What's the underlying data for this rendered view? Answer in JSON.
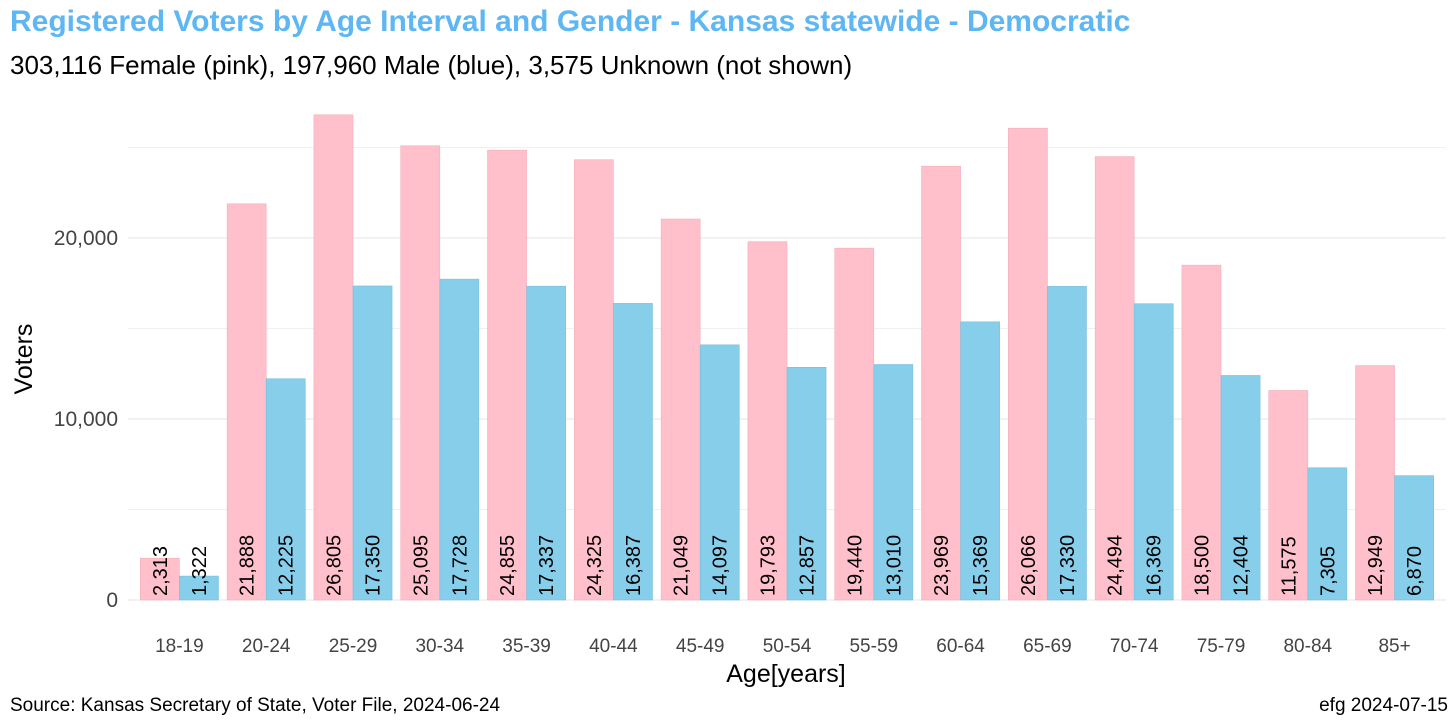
{
  "chart_data": {
    "type": "bar",
    "title": "Registered Voters by Age Interval and Gender - Kansas statewide - Democratic",
    "subtitle": "303,116 Female (pink),  197,960 Male (blue),  3,575 Unknown (not shown)",
    "xlabel": "Age[years]",
    "ylabel": "Voters",
    "ylim": [
      0,
      27000
    ],
    "yticks": [
      {
        "value": 0,
        "label": "0"
      },
      {
        "value": 10000,
        "label": "10,000"
      },
      {
        "value": 20000,
        "label": "20,000"
      }
    ],
    "grid": true,
    "categories": [
      "18-19",
      "20-24",
      "25-29",
      "30-34",
      "35-39",
      "40-44",
      "45-49",
      "50-54",
      "55-59",
      "60-64",
      "65-69",
      "70-74",
      "75-79",
      "80-84",
      "85+"
    ],
    "series": [
      {
        "color": "#FFC0CB",
        "values": [
          2313,
          21888,
          26805,
          25095,
          24855,
          24325,
          21049,
          19793,
          19440,
          23969,
          26066,
          24494,
          18500,
          11575,
          12949
        ],
        "labels": [
          "2,313",
          "21,888",
          "26,805",
          "25,095",
          "24,855",
          "24,325",
          "21,049",
          "19,793",
          "19,440",
          "23,969",
          "26,066",
          "24,494",
          "18,500",
          "11,575",
          "12,949"
        ]
      },
      {
        "color": "#87CEEB",
        "values": [
          1322,
          12225,
          17350,
          17728,
          17337,
          16387,
          14097,
          12857,
          13010,
          15369,
          17330,
          16369,
          12404,
          7305,
          6870
        ],
        "labels": [
          "1,322",
          "12,225",
          "17,350",
          "17,728",
          "17,337",
          "16,387",
          "14,097",
          "12,857",
          "13,010",
          "15,369",
          "17,330",
          "16,369",
          "12,404",
          "7,305",
          "6,870"
        ]
      }
    ]
  },
  "caption_left": "Source: Kansas Secretary of State, Voter File, 2024-06-24",
  "caption_right": "efg 2024-07-15"
}
